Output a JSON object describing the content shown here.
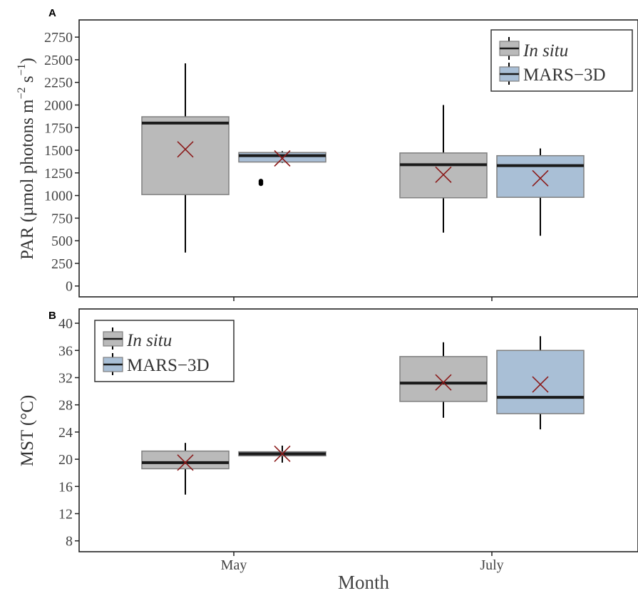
{
  "colors": {
    "in_situ": "#bababa",
    "mars3d": "#a9bfd6",
    "box_stroke": "#7f7f7f",
    "median": "#1a1a1a",
    "mean_marker": "#8b1a1a"
  },
  "x": {
    "label": "Month",
    "categories": [
      "May",
      "July"
    ]
  },
  "chart_data": [
    {
      "panel": "A",
      "type": "box",
      "ylabel": "PAR (µmol photons m−2 s−1)",
      "ylabel_base": "PAR (µmol photons m",
      "ylabel_exp1": "−2",
      "ylabel_mid": " s",
      "ylabel_exp2": "−1",
      "ylabel_end": ")",
      "ylim": [
        -120,
        2940
      ],
      "yticks": [
        0,
        250,
        500,
        750,
        1000,
        1250,
        1500,
        1750,
        2000,
        2250,
        2500,
        2750
      ],
      "legend_position": "top-right",
      "series": [
        {
          "name": "In situ",
          "color": "#bababa",
          "boxes": [
            {
              "category": "May",
              "min": 370,
              "q1": 1010,
              "median": 1800,
              "q3": 1870,
              "max": 2460,
              "mean": 1510,
              "outliers": []
            },
            {
              "category": "July",
              "min": 590,
              "q1": 975,
              "median": 1340,
              "q3": 1470,
              "max": 2000,
              "mean": 1230,
              "outliers": []
            }
          ]
        },
        {
          "name": "MARS−3D",
          "color": "#a9bfd6",
          "boxes": [
            {
              "category": "May",
              "min": 1360,
              "q1": 1370,
              "median": 1440,
              "q3": 1475,
              "max": 1490,
              "mean": 1410,
              "outliers": [
                1130,
                1140,
                1150,
                1160
              ]
            },
            {
              "category": "July",
              "min": 555,
              "q1": 980,
              "median": 1330,
              "q3": 1440,
              "max": 1520,
              "mean": 1190,
              "outliers": []
            }
          ]
        }
      ]
    },
    {
      "panel": "B",
      "type": "box",
      "ylabel": "MST (°C)",
      "ylim": [
        6.4,
        42.1
      ],
      "yticks": [
        8,
        12,
        16,
        20,
        24,
        28,
        32,
        36,
        40
      ],
      "legend_position": "top-left",
      "series": [
        {
          "name": "In situ",
          "color": "#bababa",
          "boxes": [
            {
              "category": "May",
              "min": 14.8,
              "q1": 18.6,
              "median": 19.5,
              "q3": 21.2,
              "max": 22.4,
              "mean": 19.5,
              "outliers": []
            },
            {
              "category": "July",
              "min": 26.1,
              "q1": 28.5,
              "median": 31.2,
              "q3": 35.1,
              "max": 37.2,
              "mean": 31.3,
              "outliers": []
            }
          ]
        },
        {
          "name": "MARS−3D",
          "color": "#a9bfd6",
          "boxes": [
            {
              "category": "May",
              "min": 19.5,
              "q1": 20.5,
              "median": 20.8,
              "q3": 21.1,
              "max": 22.0,
              "mean": 20.8,
              "outliers": []
            },
            {
              "category": "July",
              "min": 24.4,
              "q1": 26.7,
              "median": 29.1,
              "q3": 36.0,
              "max": 38.1,
              "mean": 31.0,
              "outliers": []
            }
          ]
        }
      ]
    }
  ]
}
